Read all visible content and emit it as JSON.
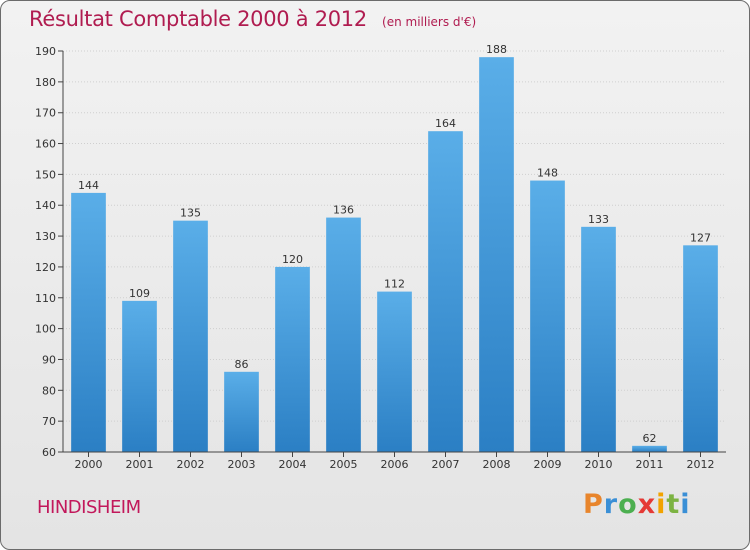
{
  "chart_data": {
    "type": "bar",
    "title": "Résultat Comptable 2000 à 2012",
    "subtitle": "(en milliers d'€)",
    "categories": [
      "2000",
      "2001",
      "2002",
      "2003",
      "2004",
      "2005",
      "2006",
      "2007",
      "2008",
      "2009",
      "2010",
      "2011",
      "2012"
    ],
    "values": [
      144,
      109,
      135,
      86,
      120,
      136,
      112,
      164,
      188,
      148,
      133,
      62,
      127
    ],
    "ylim": [
      60,
      190
    ],
    "yticks": [
      60,
      70,
      80,
      90,
      100,
      110,
      120,
      130,
      140,
      150,
      160,
      170,
      180,
      190
    ],
    "grid": true,
    "legend": "none",
    "bar_color": "#4a9fdf"
  },
  "footer": {
    "city": "HINDISHEIM",
    "logo_letters": [
      "P",
      "r",
      "o",
      "x",
      "i",
      "t",
      "i"
    ],
    "logo_colors": [
      "#e8852c",
      "#3a8fd6",
      "#4caf50",
      "#e53935",
      "#f2a300",
      "#7cb342",
      "#3a8fd6"
    ]
  }
}
